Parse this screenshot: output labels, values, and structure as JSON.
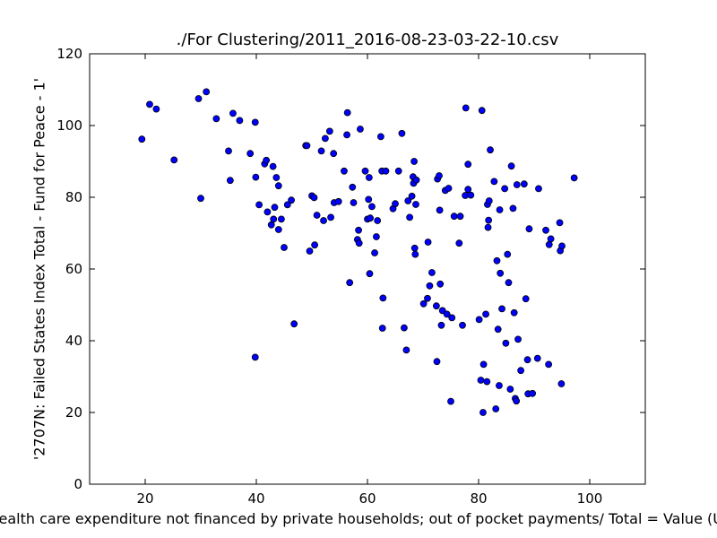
{
  "chart_data": {
    "type": "scatter",
    "title": "./For Clustering/2011_2016-08-23-03-22-10.csv",
    "xlabel": "Health care expenditure not financed by private households; out of pocket payments/ Total = Value (US$)",
    "ylabel": "'2707N: Failed States Index Total - Fund for Peace - 1'",
    "xlim": [
      10,
      110
    ],
    "ylim": [
      0,
      120
    ],
    "xticks": [
      20,
      40,
      60,
      80,
      100
    ],
    "yticks": [
      0,
      20,
      40,
      60,
      80,
      100,
      120
    ],
    "grid": false,
    "marker_color": "#0000ff",
    "edge_color": "#000000",
    "points": [
      [
        19.4,
        96.2
      ],
      [
        20.8,
        105.9
      ],
      [
        22.0,
        104.6
      ],
      [
        25.2,
        90.4
      ],
      [
        29.6,
        107.5
      ],
      [
        30.0,
        79.7
      ],
      [
        31.0,
        109.4
      ],
      [
        32.8,
        101.9
      ],
      [
        35.0,
        92.9
      ],
      [
        35.3,
        84.7
      ],
      [
        35.8,
        103.4
      ],
      [
        37.0,
        101.4
      ],
      [
        38.9,
        92.2
      ],
      [
        39.8,
        100.9
      ],
      [
        39.8,
        35.4
      ],
      [
        39.9,
        85.6
      ],
      [
        40.5,
        77.9
      ],
      [
        41.5,
        89.3
      ],
      [
        41.8,
        90.3
      ],
      [
        42.0,
        75.9
      ],
      [
        42.7,
        72.3
      ],
      [
        43.0,
        88.6
      ],
      [
        43.1,
        73.9
      ],
      [
        43.3,
        77.2
      ],
      [
        43.6,
        85.5
      ],
      [
        44.0,
        71.0
      ],
      [
        44.0,
        83.2
      ],
      [
        44.5,
        73.9
      ],
      [
        45.0,
        66.0
      ],
      [
        45.6,
        77.9
      ],
      [
        46.3,
        79.2
      ],
      [
        46.8,
        44.7
      ],
      [
        48.9,
        94.4
      ],
      [
        49.1,
        94.4
      ],
      [
        49.6,
        65.0
      ],
      [
        50.0,
        80.4
      ],
      [
        50.4,
        79.9
      ],
      [
        50.5,
        66.7
      ],
      [
        50.9,
        75.0
      ],
      [
        51.7,
        92.9
      ],
      [
        52.1,
        73.5
      ],
      [
        52.4,
        96.4
      ],
      [
        53.2,
        98.4
      ],
      [
        53.4,
        74.4
      ],
      [
        53.9,
        92.2
      ],
      [
        54.0,
        78.5
      ],
      [
        54.8,
        78.8
      ],
      [
        55.8,
        87.3
      ],
      [
        56.3,
        97.4
      ],
      [
        56.4,
        103.6
      ],
      [
        56.8,
        56.2
      ],
      [
        57.3,
        82.8
      ],
      [
        57.5,
        78.5
      ],
      [
        58.2,
        68.2
      ],
      [
        58.4,
        70.8
      ],
      [
        58.5,
        67.2
      ],
      [
        58.7,
        99.0
      ],
      [
        59.6,
        87.3
      ],
      [
        60.0,
        73.9
      ],
      [
        60.2,
        79.4
      ],
      [
        60.3,
        85.5
      ],
      [
        60.4,
        58.7
      ],
      [
        60.5,
        74.2
      ],
      [
        60.8,
        77.4
      ],
      [
        61.3,
        64.5
      ],
      [
        61.6,
        69.0
      ],
      [
        61.8,
        73.5
      ],
      [
        62.4,
        96.9
      ],
      [
        62.6,
        87.3
      ],
      [
        62.7,
        43.5
      ],
      [
        62.8,
        51.9
      ],
      [
        63.3,
        87.3
      ],
      [
        64.6,
        76.8
      ],
      [
        65.0,
        78.2
      ],
      [
        65.6,
        87.3
      ],
      [
        66.2,
        97.8
      ],
      [
        66.6,
        43.6
      ],
      [
        67.0,
        37.4
      ],
      [
        67.3,
        79.0
      ],
      [
        67.6,
        74.4
      ],
      [
        68.0,
        80.3
      ],
      [
        68.2,
        85.7
      ],
      [
        68.3,
        83.9
      ],
      [
        68.4,
        90.0
      ],
      [
        68.5,
        65.8
      ],
      [
        68.6,
        64.1
      ],
      [
        68.7,
        78.0
      ],
      [
        68.8,
        84.8
      ],
      [
        70.1,
        50.3
      ],
      [
        70.8,
        51.8
      ],
      [
        70.9,
        67.5
      ],
      [
        71.2,
        55.3
      ],
      [
        71.6,
        59.0
      ],
      [
        72.4,
        49.7
      ],
      [
        72.5,
        34.2
      ],
      [
        72.6,
        85.1
      ],
      [
        72.9,
        86.0
      ],
      [
        73.0,
        76.4
      ],
      [
        73.1,
        55.8
      ],
      [
        73.3,
        44.3
      ],
      [
        73.5,
        48.4
      ],
      [
        74.0,
        81.9
      ],
      [
        74.3,
        47.4
      ],
      [
        74.6,
        82.5
      ],
      [
        75.0,
        23.1
      ],
      [
        75.2,
        46.4
      ],
      [
        75.6,
        74.7
      ],
      [
        76.5,
        67.2
      ],
      [
        76.7,
        74.7
      ],
      [
        77.1,
        44.3
      ],
      [
        77.6,
        80.5
      ],
      [
        77.7,
        104.9
      ],
      [
        78.1,
        89.2
      ],
      [
        78.1,
        82.2
      ],
      [
        78.6,
        80.6
      ],
      [
        80.1,
        45.9
      ],
      [
        80.4,
        29.0
      ],
      [
        80.6,
        104.2
      ],
      [
        80.8,
        20.0
      ],
      [
        80.9,
        33.4
      ],
      [
        81.3,
        47.4
      ],
      [
        81.5,
        28.6
      ],
      [
        81.6,
        78.0
      ],
      [
        81.7,
        71.6
      ],
      [
        81.8,
        73.6
      ],
      [
        81.9,
        79.0
      ],
      [
        82.1,
        93.2
      ],
      [
        82.8,
        84.4
      ],
      [
        83.1,
        21.0
      ],
      [
        83.3,
        62.3
      ],
      [
        83.5,
        43.2
      ],
      [
        83.7,
        27.5
      ],
      [
        83.8,
        76.5
      ],
      [
        83.9,
        58.8
      ],
      [
        84.2,
        48.9
      ],
      [
        84.7,
        82.4
      ],
      [
        84.9,
        39.3
      ],
      [
        85.2,
        64.1
      ],
      [
        85.4,
        56.2
      ],
      [
        85.7,
        26.5
      ],
      [
        85.9,
        88.7
      ],
      [
        86.2,
        76.9
      ],
      [
        86.4,
        47.8
      ],
      [
        86.6,
        23.9
      ],
      [
        86.8,
        23.2
      ],
      [
        86.9,
        83.5
      ],
      [
        87.1,
        40.4
      ],
      [
        87.6,
        31.7
      ],
      [
        88.2,
        83.7
      ],
      [
        88.5,
        51.7
      ],
      [
        88.8,
        34.7
      ],
      [
        88.9,
        25.2
      ],
      [
        89.1,
        71.2
      ],
      [
        89.7,
        25.3
      ],
      [
        90.6,
        35.1
      ],
      [
        90.8,
        82.4
      ],
      [
        92.1,
        70.8
      ],
      [
        92.6,
        33.4
      ],
      [
        92.7,
        66.8
      ],
      [
        93.0,
        68.4
      ],
      [
        94.6,
        72.9
      ],
      [
        94.7,
        65.1
      ],
      [
        94.9,
        28.0
      ],
      [
        95.0,
        66.4
      ],
      [
        97.2,
        85.4
      ]
    ]
  }
}
